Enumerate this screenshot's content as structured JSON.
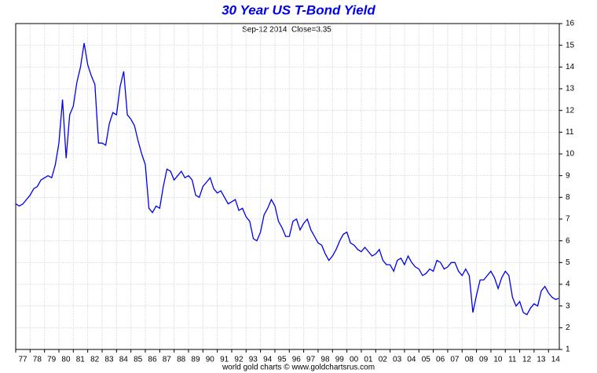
{
  "chart_data": {
    "type": "line",
    "title": "30 Year US T-Bond Yield",
    "subtitle": "Sep-12 2014  Close=3.35",
    "footer": "world gold charts © www.goldchartsrus.com",
    "x": [
      1977,
      1977.25,
      1977.5,
      1977.75,
      1978,
      1978.25,
      1978.5,
      1978.75,
      1979,
      1979.25,
      1979.5,
      1979.75,
      1980,
      1980.25,
      1980.5,
      1980.75,
      1981,
      1981.25,
      1981.5,
      1981.75,
      1982,
      1982.25,
      1982.5,
      1982.75,
      1983,
      1983.25,
      1983.5,
      1983.75,
      1984,
      1984.25,
      1984.5,
      1984.75,
      1985,
      1985.25,
      1985.5,
      1985.75,
      1986,
      1986.25,
      1986.5,
      1986.75,
      1987,
      1987.25,
      1987.5,
      1987.75,
      1988,
      1988.25,
      1988.5,
      1988.75,
      1989,
      1989.25,
      1989.5,
      1989.75,
      1990,
      1990.25,
      1990.5,
      1990.75,
      1991,
      1991.25,
      1991.5,
      1991.75,
      1992,
      1992.25,
      1992.5,
      1992.75,
      1993,
      1993.25,
      1993.5,
      1993.75,
      1994,
      1994.25,
      1994.5,
      1994.75,
      1995,
      1995.25,
      1995.5,
      1995.75,
      1996,
      1996.25,
      1996.5,
      1996.75,
      1997,
      1997.25,
      1997.5,
      1997.75,
      1998,
      1998.25,
      1998.5,
      1998.75,
      1999,
      1999.25,
      1999.5,
      1999.75,
      2000,
      2000.25,
      2000.5,
      2000.75,
      2001,
      2001.25,
      2001.5,
      2001.75,
      2002,
      2002.25,
      2002.5,
      2002.75,
      2003,
      2003.25,
      2003.5,
      2003.75,
      2004,
      2004.25,
      2004.5,
      2004.75,
      2005,
      2005.25,
      2005.5,
      2005.75,
      2006,
      2006.25,
      2006.5,
      2006.75,
      2007,
      2007.25,
      2007.5,
      2007.75,
      2008,
      2008.25,
      2008.5,
      2008.75,
      2009,
      2009.25,
      2009.5,
      2009.75,
      2010,
      2010.25,
      2010.5,
      2010.75,
      2011,
      2011.25,
      2011.5,
      2011.75,
      2012,
      2012.25,
      2012.5,
      2012.75,
      2013,
      2013.25,
      2013.5,
      2013.75,
      2014,
      2014.25,
      2014.5,
      2014.7
    ],
    "series": [
      {
        "color": "#0000ee",
        "values": [
          7.7,
          7.6,
          7.7,
          7.9,
          8.1,
          8.4,
          8.5,
          8.8,
          8.9,
          9.0,
          8.9,
          9.5,
          10.5,
          12.5,
          9.8,
          11.8,
          12.2,
          13.3,
          14.0,
          15.1,
          14.1,
          13.6,
          13.2,
          10.5,
          10.5,
          10.4,
          11.4,
          11.9,
          11.8,
          13.1,
          13.8,
          11.8,
          11.6,
          11.3,
          10.6,
          10.0,
          9.5,
          7.5,
          7.3,
          7.6,
          7.5,
          8.5,
          9.3,
          9.2,
          8.8,
          9.0,
          9.2,
          8.9,
          9.0,
          8.8,
          8.1,
          8.0,
          8.5,
          8.7,
          8.9,
          8.4,
          8.2,
          8.3,
          8.0,
          7.7,
          7.8,
          7.9,
          7.4,
          7.5,
          7.1,
          6.9,
          6.1,
          6.0,
          6.4,
          7.2,
          7.5,
          7.9,
          7.6,
          6.9,
          6.6,
          6.2,
          6.2,
          6.9,
          7.0,
          6.5,
          6.8,
          7.0,
          6.5,
          6.2,
          5.9,
          5.8,
          5.4,
          5.1,
          5.3,
          5.6,
          6.0,
          6.3,
          6.4,
          5.9,
          5.8,
          5.6,
          5.5,
          5.7,
          5.5,
          5.3,
          5.4,
          5.6,
          5.1,
          4.9,
          4.9,
          4.6,
          5.1,
          5.2,
          4.9,
          5.3,
          5.0,
          4.8,
          4.7,
          4.4,
          4.5,
          4.7,
          4.6,
          5.1,
          5.0,
          4.7,
          4.8,
          5.0,
          5.0,
          4.6,
          4.4,
          4.7,
          4.4,
          2.7,
          3.5,
          4.2,
          4.2,
          4.4,
          4.6,
          4.3,
          3.8,
          4.3,
          4.6,
          4.4,
          3.4,
          3.0,
          3.2,
          2.7,
          2.6,
          2.9,
          3.1,
          3.0,
          3.7,
          3.9,
          3.6,
          3.4,
          3.3,
          3.35
        ]
      }
    ],
    "xlim": [
      1977,
      2014.75
    ],
    "xticks": [
      {
        "value": 1977,
        "label": "77"
      },
      {
        "value": 1978,
        "label": "78"
      },
      {
        "value": 1979,
        "label": "79"
      },
      {
        "value": 1980,
        "label": "80"
      },
      {
        "value": 1981,
        "label": "81"
      },
      {
        "value": 1982,
        "label": "82"
      },
      {
        "value": 1983,
        "label": "83"
      },
      {
        "value": 1984,
        "label": "84"
      },
      {
        "value": 1985,
        "label": "85"
      },
      {
        "value": 1986,
        "label": "86"
      },
      {
        "value": 1987,
        "label": "87"
      },
      {
        "value": 1988,
        "label": "88"
      },
      {
        "value": 1989,
        "label": "89"
      },
      {
        "value": 1990,
        "label": "90"
      },
      {
        "value": 1991,
        "label": "91"
      },
      {
        "value": 1992,
        "label": "92"
      },
      {
        "value": 1993,
        "label": "93"
      },
      {
        "value": 1994,
        "label": "94"
      },
      {
        "value": 1995,
        "label": "95"
      },
      {
        "value": 1996,
        "label": "96"
      },
      {
        "value": 1997,
        "label": "97"
      },
      {
        "value": 1998,
        "label": "98"
      },
      {
        "value": 1999,
        "label": "99"
      },
      {
        "value": 2000,
        "label": "00"
      },
      {
        "value": 2001,
        "label": "01"
      },
      {
        "value": 2002,
        "label": "02"
      },
      {
        "value": 2003,
        "label": "03"
      },
      {
        "value": 2004,
        "label": "04"
      },
      {
        "value": 2005,
        "label": "05"
      },
      {
        "value": 2006,
        "label": "06"
      },
      {
        "value": 2007,
        "label": "07"
      },
      {
        "value": 2008,
        "label": "08"
      },
      {
        "value": 2009,
        "label": "09"
      },
      {
        "value": 2010,
        "label": "10"
      },
      {
        "value": 2011,
        "label": "11"
      },
      {
        "value": 2012,
        "label": "12"
      },
      {
        "value": 2013,
        "label": "13"
      },
      {
        "value": 2014,
        "label": "14"
      }
    ],
    "ylim": [
      1,
      16
    ],
    "yticks": [
      1,
      2,
      3,
      4,
      5,
      6,
      7,
      8,
      9,
      10,
      11,
      12,
      13,
      14,
      15,
      16
    ],
    "grid": true
  }
}
